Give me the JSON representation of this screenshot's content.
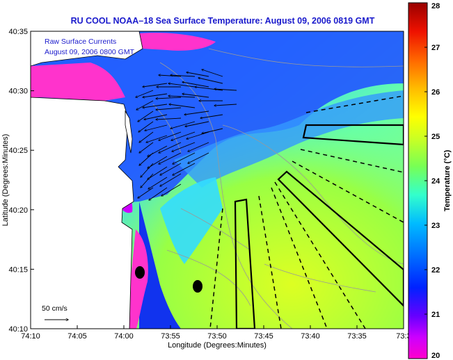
{
  "title": "RU COOL  NOAA–18  Sea Surface Temperature:  August 09, 2006 0819 GMT",
  "legend": {
    "line1": "Raw Surface Currents",
    "line2": "August 09, 2006 0800 GMT"
  },
  "scale_label": "50 cm/s",
  "axes": {
    "xlabel": "Longitude (Degrees:Minutes)",
    "ylabel": "Latitude (Degrees:Minutes)",
    "x_ticks": [
      "74:10",
      "74:05",
      "74:00",
      "73:55",
      "73:50",
      "73:45",
      "73:40",
      "73:35",
      "73:3"
    ],
    "y_ticks": [
      "40:35",
      "40:30",
      "40:25",
      "40:20",
      "40:15",
      "40:10"
    ]
  },
  "colorbar": {
    "label": "Temperature (°C)",
    "ticks": [
      "28",
      "27",
      "26",
      "25",
      "24",
      "23",
      "22",
      "21",
      "20"
    ],
    "min": 20,
    "max": 28
  },
  "colors": {
    "land": "#ffffff",
    "cold": "#ff33cc",
    "cool": "#1a33ff",
    "mid": "#33ccff",
    "warm": "#99ff66",
    "warmest": "#ccff33",
    "title": "#1a1acc"
  }
}
